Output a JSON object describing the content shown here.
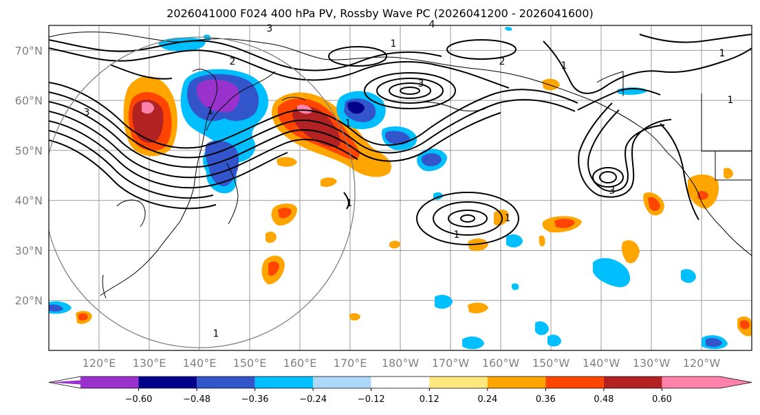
{
  "title": "2026041000 F024 400 hPa PV, Rossby Wave PC (2026041200 - 2026041600)",
  "chart_data": {
    "type": "map",
    "title": "2026041000 F024 400 hPa PV, Rossby Wave PC (2026041200 - 2026041600)",
    "lon_range": [
      110,
      250
    ],
    "lat_range": [
      10,
      75
    ],
    "lat_ticks": [
      "70°N",
      "60°N",
      "50°N",
      "40°N",
      "30°N",
      "20°N"
    ],
    "lon_ticks": [
      "120°E",
      "130°E",
      "140°E",
      "150°E",
      "160°E",
      "170°E",
      "180°W",
      "170°W",
      "160°W",
      "150°W",
      "140°W",
      "130°W",
      "120°W"
    ],
    "contour_labels": [
      "3",
      "1",
      "2",
      "3",
      "4",
      "1",
      "1",
      "1",
      "2",
      "1",
      "3",
      "1",
      "3",
      "1",
      "1",
      "1",
      "1"
    ],
    "colorbar": {
      "ticks": [
        "−0.60",
        "−0.48",
        "−0.36",
        "−0.24",
        "−0.12",
        "0.12",
        "0.24",
        "0.36",
        "0.48",
        "0.60"
      ],
      "colors": [
        "#9932cc",
        "#00008b",
        "#3355cc",
        "#00bfff",
        "#add8f7",
        "#ffffff",
        "#ffe97f",
        "#ffa500",
        "#ff4500",
        "#b22222",
        "#ff82ab"
      ],
      "extend": "both"
    }
  }
}
